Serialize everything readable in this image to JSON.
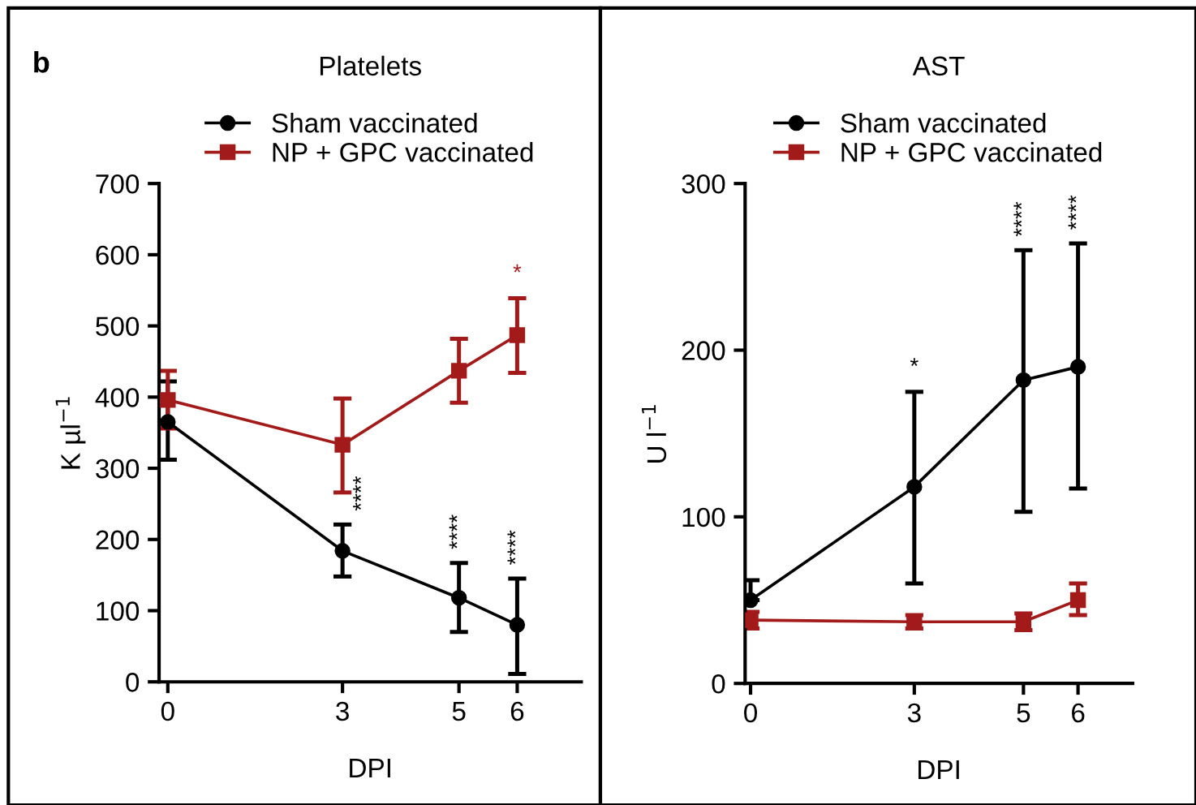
{
  "chart_data": [
    {
      "type": "line",
      "title": "Platelets",
      "xlabel": "DPI",
      "ylabel": "K µl$^{−1}$",
      "x": [
        0,
        3,
        5,
        6
      ],
      "xlim": [
        -0.15,
        7.1
      ],
      "xticks": [
        0,
        3,
        5,
        6
      ],
      "ylim": [
        0,
        700
      ],
      "yticks": [
        0,
        100,
        200,
        300,
        400,
        500,
        600,
        700
      ],
      "grid": false,
      "legend": "top",
      "line_style": "solid",
      "series": [
        {
          "name": "Sham vaccinated",
          "color": "#000000",
          "marker": "circle",
          "values": [
            365,
            184,
            118,
            80
          ],
          "errors": [
            [
              312,
              422
            ],
            [
              148,
              221
            ],
            [
              70,
              167
            ],
            [
              11,
              145
            ]
          ]
        },
        {
          "name": "NP + GPC vaccinated",
          "color": "#a31a1a",
          "marker": "square",
          "values": [
            396,
            333,
            437,
            487
          ],
          "errors": [
            [
              356,
              437
            ],
            [
              266,
              398
            ],
            [
              392,
              482
            ],
            [
              434,
              539
            ]
          ]
        }
      ],
      "annotations": [
        "b",
        {
          "text": "****",
          "x": 3,
          "y": 184
        },
        {
          "text": "****",
          "x": 5,
          "y": 118
        },
        {
          "text": "****",
          "x": 6,
          "y": 80
        },
        {
          "text": "*",
          "x": 6,
          "y": 487
        }
      ]
    },
    {
      "type": "line",
      "title": "AST",
      "xlabel": "DPI",
      "ylabel": "U l$^{−1}$",
      "x": [
        0,
        3,
        5,
        6
      ],
      "xlim": [
        -0.1,
        7.0
      ],
      "xticks": [
        0,
        3,
        5,
        6
      ],
      "ylim": [
        0,
        300
      ],
      "yticks": [
        0,
        100,
        200,
        300
      ],
      "grid": false,
      "legend": "top",
      "line_style": "solid",
      "series": [
        {
          "name": "Sham vaccinated",
          "color": "#000000",
          "marker": "circle",
          "values": [
            50,
            118,
            182,
            190
          ],
          "errors": [
            [
              50,
              62
            ],
            [
              60,
              175
            ],
            [
              103,
              260
            ],
            [
              117,
              264
            ]
          ]
        },
        {
          "name": "NP + GPC vaccinated",
          "color": "#a31a1a",
          "marker": "square",
          "values": [
            38,
            37,
            37,
            50
          ],
          "errors": [
            [
              33,
              43
            ],
            [
              33,
              41
            ],
            [
              32,
              42
            ],
            [
              41,
              60
            ]
          ]
        }
      ],
      "annotations": [
        {
          "text": "*",
          "x": 3,
          "y": 175
        },
        {
          "text": "****",
          "x": 5,
          "y": 260
        },
        {
          "text": "****",
          "x": 6,
          "y": 264
        }
      ]
    }
  ]
}
